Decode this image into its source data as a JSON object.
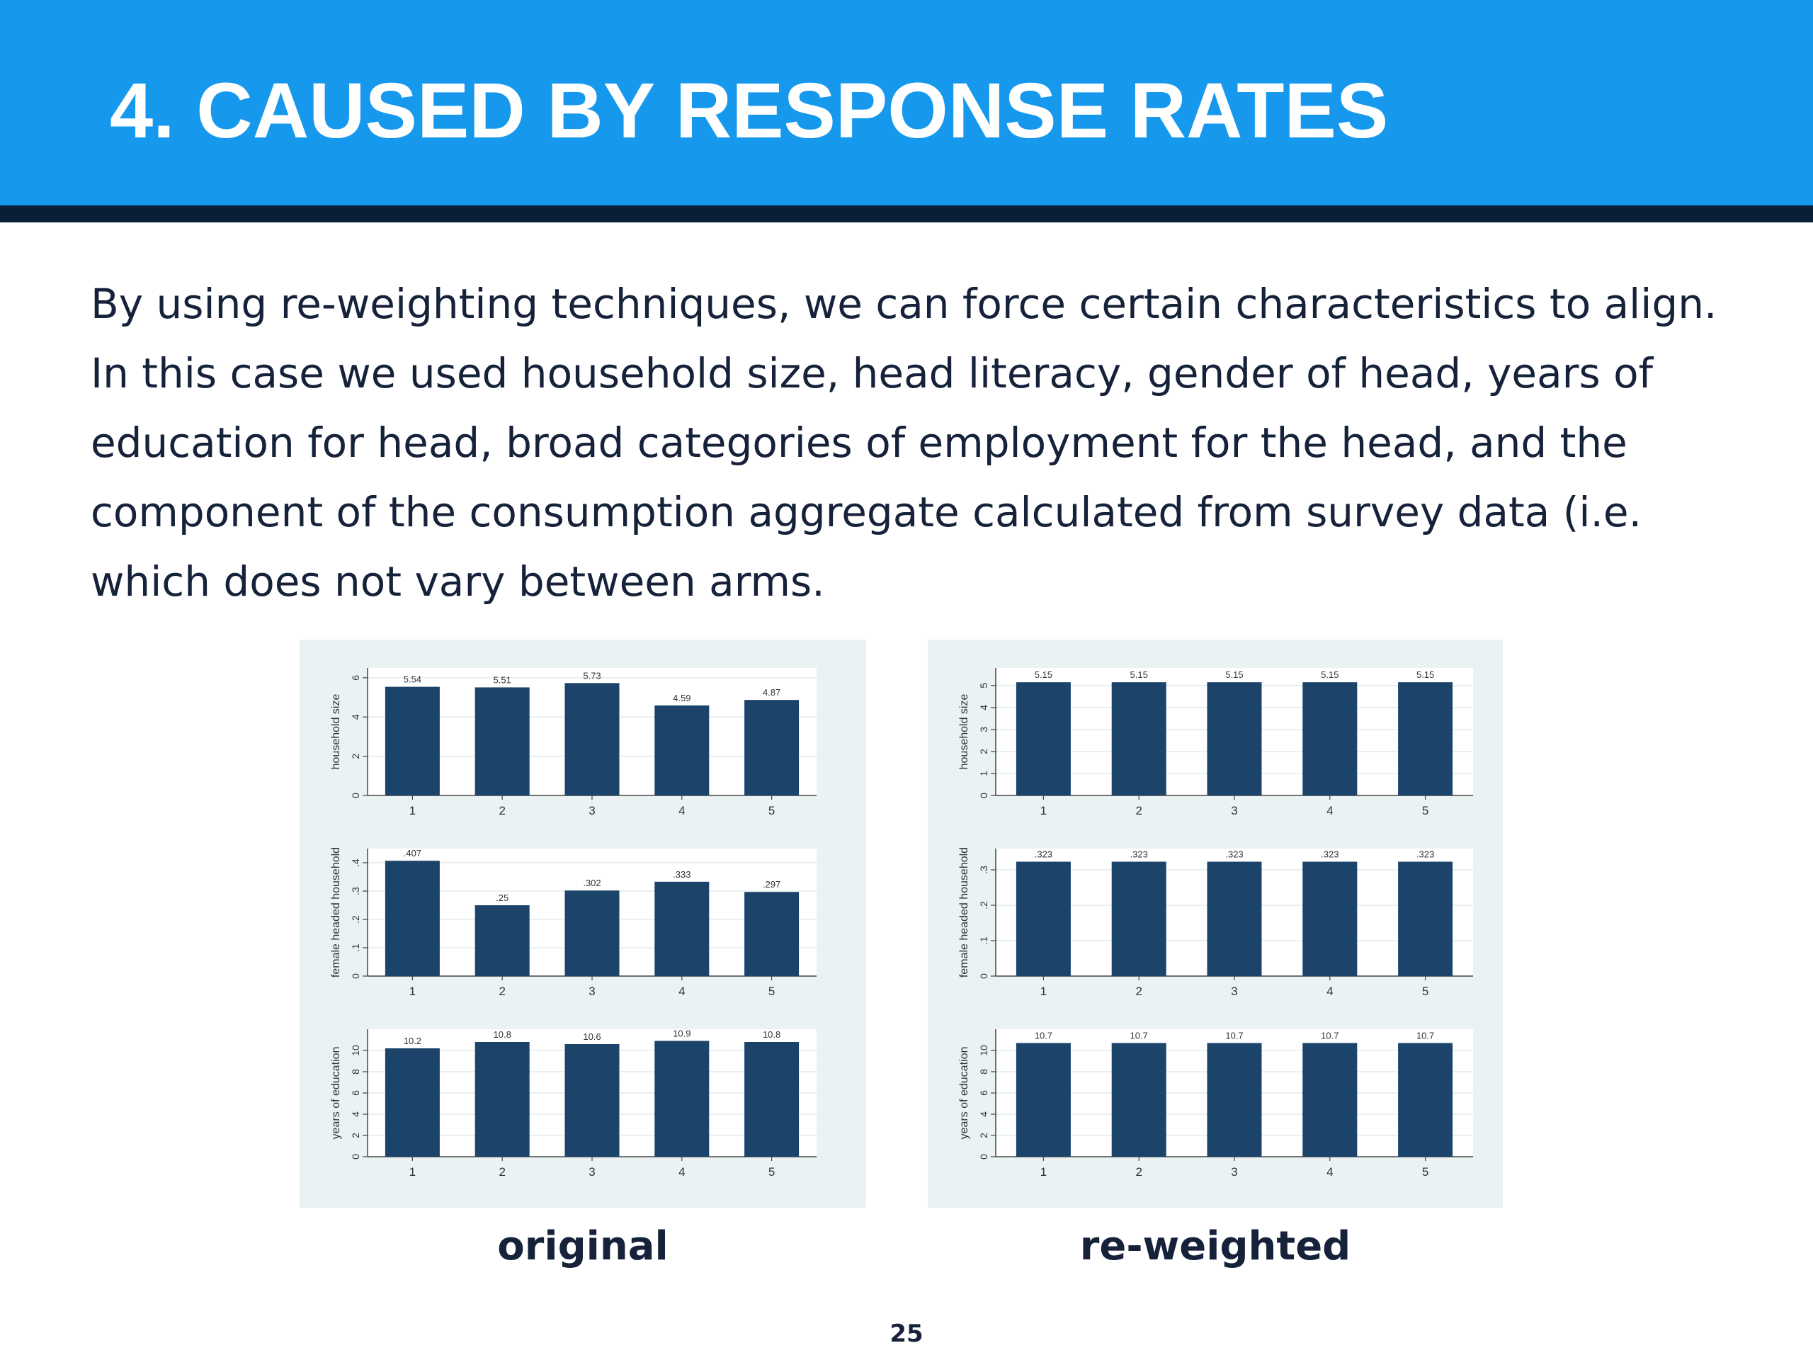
{
  "slide": {
    "title": "4. CAUSED BY RESPONSE RATES",
    "body_lines": [
      "By using re-weighting techniques, we can force certain characteristics to align.",
      "In this case we used household size, head literacy, gender of head, years of",
      "education for head, broad categories of employment for the head, and the",
      "component of the consumption aggregate calculated from survey data (i.e.",
      "which does not vary between arms."
    ],
    "captions": {
      "left": "original",
      "right": "re-weighted"
    },
    "page_number": "25"
  },
  "colors": {
    "header": "#1699ec",
    "header_rule": "#0a1f35",
    "bar": "#1c446a",
    "panel_bg": "#eaf2f3",
    "plot_bg": "#ffffff"
  },
  "chart_data": [
    {
      "type": "bar",
      "panel": "original",
      "row": 0,
      "categories": [
        "1",
        "2",
        "3",
        "4",
        "5"
      ],
      "values": [
        5.54,
        5.51,
        5.73,
        4.59,
        4.87
      ],
      "value_labels": [
        "5.54",
        "5.51",
        "5.73",
        "4.59",
        "4.87"
      ],
      "ylabel": "household size",
      "ylim": [
        0,
        6.5
      ],
      "yticks": [
        0,
        2,
        4,
        6
      ],
      "ytick_labels": [
        "0",
        "2",
        "4",
        "6"
      ]
    },
    {
      "type": "bar",
      "panel": "original",
      "row": 1,
      "categories": [
        "1",
        "2",
        "3",
        "4",
        "5"
      ],
      "values": [
        0.407,
        0.25,
        0.302,
        0.333,
        0.297
      ],
      "value_labels": [
        ".407",
        ".25",
        ".302",
        ".333",
        ".297"
      ],
      "ylabel": "female headed household",
      "ylim": [
        0,
        0.45
      ],
      "yticks": [
        0,
        0.1,
        0.2,
        0.3,
        0.4
      ],
      "ytick_labels": [
        "0",
        ".1",
        ".2",
        ".3",
        ".4"
      ]
    },
    {
      "type": "bar",
      "panel": "original",
      "row": 2,
      "categories": [
        "1",
        "2",
        "3",
        "4",
        "5"
      ],
      "values": [
        10.2,
        10.8,
        10.6,
        10.9,
        10.8
      ],
      "value_labels": [
        "10.2",
        "10.8",
        "10.6",
        "10.9",
        "10.8"
      ],
      "ylabel": "years of education",
      "ylim": [
        0,
        12
      ],
      "yticks": [
        0,
        2,
        4,
        6,
        8,
        10
      ],
      "ytick_labels": [
        "0",
        "2",
        "4",
        "6",
        "8",
        "10"
      ]
    },
    {
      "type": "bar",
      "panel": "re-weighted",
      "row": 0,
      "categories": [
        "1",
        "2",
        "3",
        "4",
        "5"
      ],
      "values": [
        5.15,
        5.15,
        5.15,
        5.15,
        5.15
      ],
      "value_labels": [
        "5.15",
        "5.15",
        "5.15",
        "5.15",
        "5.15"
      ],
      "ylabel": "household size",
      "ylim": [
        0,
        5.8
      ],
      "yticks": [
        0,
        1,
        2,
        3,
        4,
        5
      ],
      "ytick_labels": [
        "0",
        "1",
        "2",
        "3",
        "4",
        "5"
      ]
    },
    {
      "type": "bar",
      "panel": "re-weighted",
      "row": 1,
      "categories": [
        "1",
        "2",
        "3",
        "4",
        "5"
      ],
      "values": [
        0.323,
        0.323,
        0.323,
        0.323,
        0.323
      ],
      "value_labels": [
        ".323",
        ".323",
        ".323",
        ".323",
        ".323"
      ],
      "ylabel": "female headed household",
      "ylim": [
        0,
        0.36
      ],
      "yticks": [
        0,
        0.1,
        0.2,
        0.3
      ],
      "ytick_labels": [
        "0",
        ".1",
        ".2",
        ".3"
      ]
    },
    {
      "type": "bar",
      "panel": "re-weighted",
      "row": 2,
      "categories": [
        "1",
        "2",
        "3",
        "4",
        "5"
      ],
      "values": [
        10.7,
        10.7,
        10.7,
        10.7,
        10.7
      ],
      "value_labels": [
        "10.7",
        "10.7",
        "10.7",
        "10.7",
        "10.7"
      ],
      "ylabel": "years of education",
      "ylim": [
        0,
        12
      ],
      "yticks": [
        0,
        2,
        4,
        6,
        8,
        10
      ],
      "ytick_labels": [
        "0",
        "2",
        "4",
        "6",
        "8",
        "10"
      ]
    }
  ]
}
